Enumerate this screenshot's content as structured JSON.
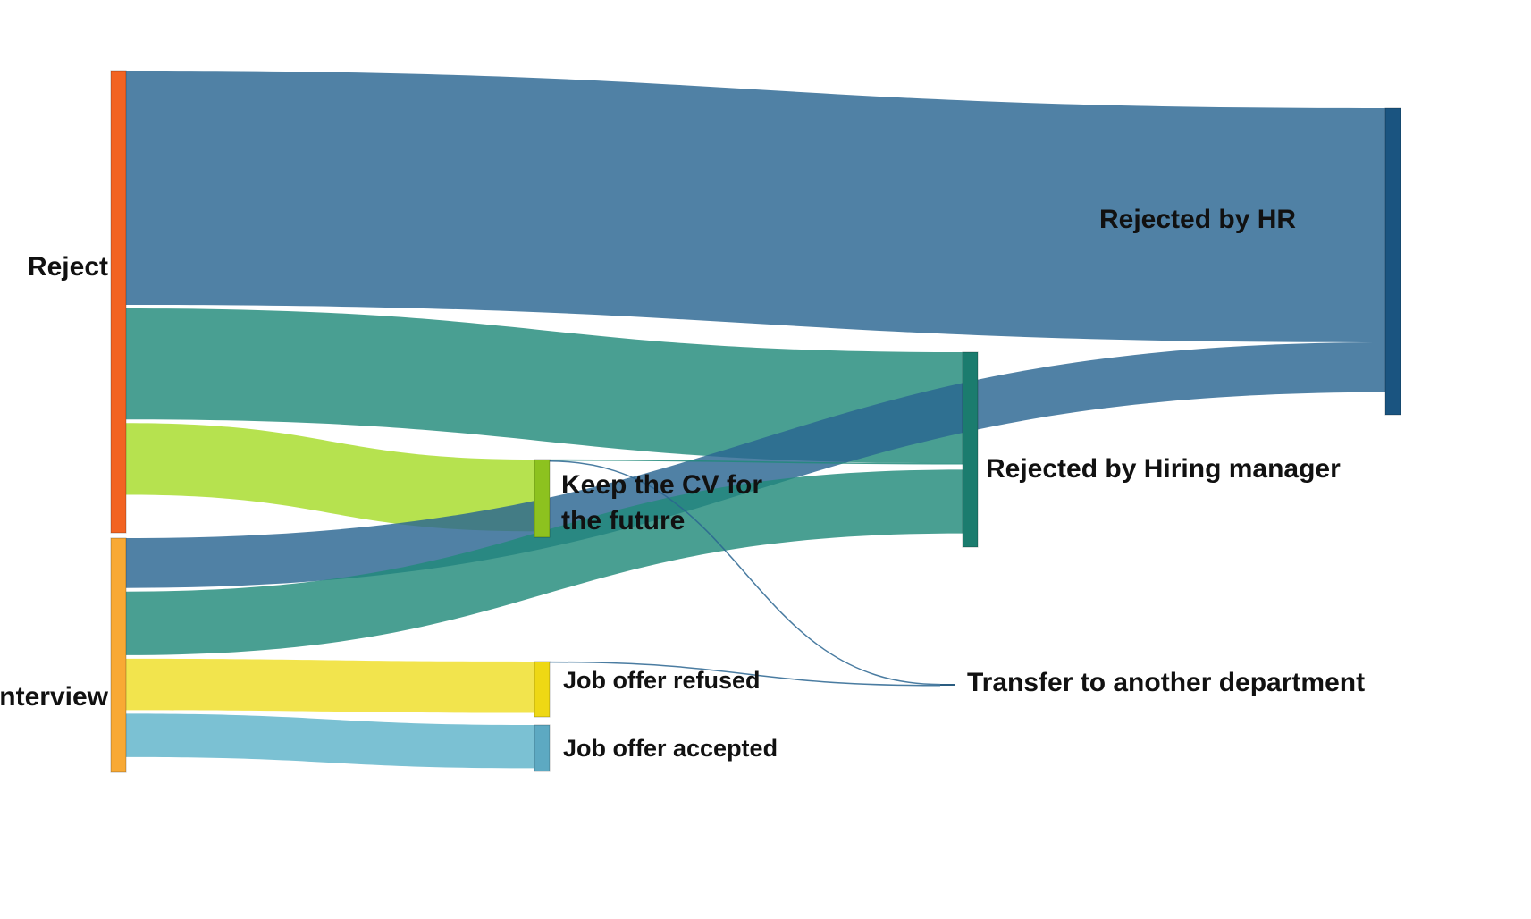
{
  "diagram": {
    "type": "sankey",
    "nodes": [
      {
        "id": "reject",
        "label_lines": [
          "Reject"
        ],
        "color": "#f26322"
      },
      {
        "id": "interview",
        "label_lines": [
          "Interview"
        ],
        "color": "#f8a934"
      },
      {
        "id": "keep_cv",
        "label_lines": [
          "Keep the CV for",
          "the future"
        ],
        "color": "#8dc21f"
      },
      {
        "id": "offer_refused",
        "label_lines": [
          "Job offer refused"
        ],
        "color": "#eed814"
      },
      {
        "id": "offer_accepted",
        "label_lines": [
          "Job offer accepted"
        ],
        "color": "#5da9c2"
      },
      {
        "id": "hiring_manager",
        "label_lines": [
          "Rejected by Hiring manager"
        ],
        "color": "#1b7c6e"
      },
      {
        "id": "transfer",
        "label_lines": [
          "Transfer to another department"
        ],
        "color": "#2a5c80"
      },
      {
        "id": "hr",
        "label_lines": [
          "Rejected by HR"
        ],
        "color": "#1a5480"
      }
    ],
    "links": [
      {
        "source": "reject",
        "target": "hr",
        "value": 287,
        "color": "#2a6591"
      },
      {
        "source": "reject",
        "target": "hiring_manager",
        "value": 136,
        "color": "#218a7a"
      },
      {
        "source": "reject",
        "target": "keep_cv",
        "value": 88,
        "color": "#a6dc28"
      },
      {
        "source": "interview",
        "target": "hr",
        "value": 61,
        "color": "#2a6591"
      },
      {
        "source": "interview",
        "target": "hiring_manager",
        "value": 78,
        "color": "#218a7a"
      },
      {
        "source": "interview",
        "target": "offer_refused",
        "value": 63,
        "color": "#efde26"
      },
      {
        "source": "interview",
        "target": "offer_accepted",
        "value": 53,
        "color": "#5eb3c9"
      },
      {
        "source": "keep_cv",
        "target": "hiring_manager",
        "value": 1,
        "color": "#218a7a"
      },
      {
        "source": "keep_cv",
        "target": "transfer",
        "value": 1,
        "color": "#2a6591"
      },
      {
        "source": "offer_refused",
        "target": "transfer",
        "value": 1,
        "color": "#2a6591"
      }
    ]
  }
}
